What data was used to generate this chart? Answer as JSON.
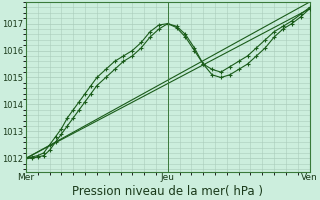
{
  "bg_color": "#cceedd",
  "grid_color": "#aaccbb",
  "line_color": "#1a5c1a",
  "marker_color": "#1a5c1a",
  "xlabel": "Pression niveau de la mer( hPa )",
  "xlabel_fontsize": 8.5,
  "ylim": [
    1011.5,
    1017.8
  ],
  "yticks": [
    1012,
    1013,
    1014,
    1015,
    1016,
    1017
  ],
  "xtick_labels": [
    "Mer",
    "Jeu",
    "Ven"
  ],
  "xtick_positions": [
    0,
    48,
    96
  ],
  "total_hours": 96,
  "series1": {
    "x": [
      0,
      2,
      4,
      6,
      8,
      10,
      12,
      14,
      16,
      18,
      20,
      22,
      24,
      27,
      30,
      33,
      36,
      39,
      42,
      45,
      48,
      51,
      54,
      57,
      60,
      63,
      66,
      69,
      72,
      75,
      78,
      81,
      84,
      87,
      90,
      93,
      96
    ],
    "y": [
      1012.0,
      1012.05,
      1012.1,
      1012.2,
      1012.5,
      1012.8,
      1013.1,
      1013.5,
      1013.8,
      1014.1,
      1014.4,
      1014.7,
      1015.0,
      1015.3,
      1015.6,
      1015.8,
      1016.0,
      1016.3,
      1016.7,
      1016.95,
      1017.0,
      1016.85,
      1016.5,
      1016.0,
      1015.5,
      1015.3,
      1015.2,
      1015.4,
      1015.6,
      1015.8,
      1016.1,
      1016.4,
      1016.7,
      1016.9,
      1017.1,
      1017.35,
      1017.6
    ]
  },
  "series2": {
    "x": [
      0,
      2,
      4,
      6,
      8,
      10,
      12,
      14,
      16,
      18,
      20,
      22,
      24,
      27,
      30,
      33,
      36,
      39,
      42,
      45,
      48,
      51,
      54,
      57,
      60,
      63,
      66,
      69,
      72,
      75,
      78,
      81,
      84,
      87,
      90,
      93,
      96
    ],
    "y": [
      1012.0,
      1012.0,
      1012.05,
      1012.1,
      1012.3,
      1012.6,
      1012.9,
      1013.2,
      1013.5,
      1013.8,
      1014.1,
      1014.4,
      1014.7,
      1015.0,
      1015.3,
      1015.6,
      1015.8,
      1016.1,
      1016.5,
      1016.8,
      1017.0,
      1016.9,
      1016.6,
      1016.1,
      1015.5,
      1015.1,
      1015.0,
      1015.1,
      1015.3,
      1015.5,
      1015.8,
      1016.1,
      1016.5,
      1016.8,
      1017.0,
      1017.25,
      1017.55
    ]
  },
  "series3": {
    "x": [
      0,
      96
    ],
    "y": [
      1012.0,
      1017.8
    ]
  },
  "series4": {
    "x": [
      0,
      96
    ],
    "y": [
      1012.0,
      1017.55
    ]
  }
}
